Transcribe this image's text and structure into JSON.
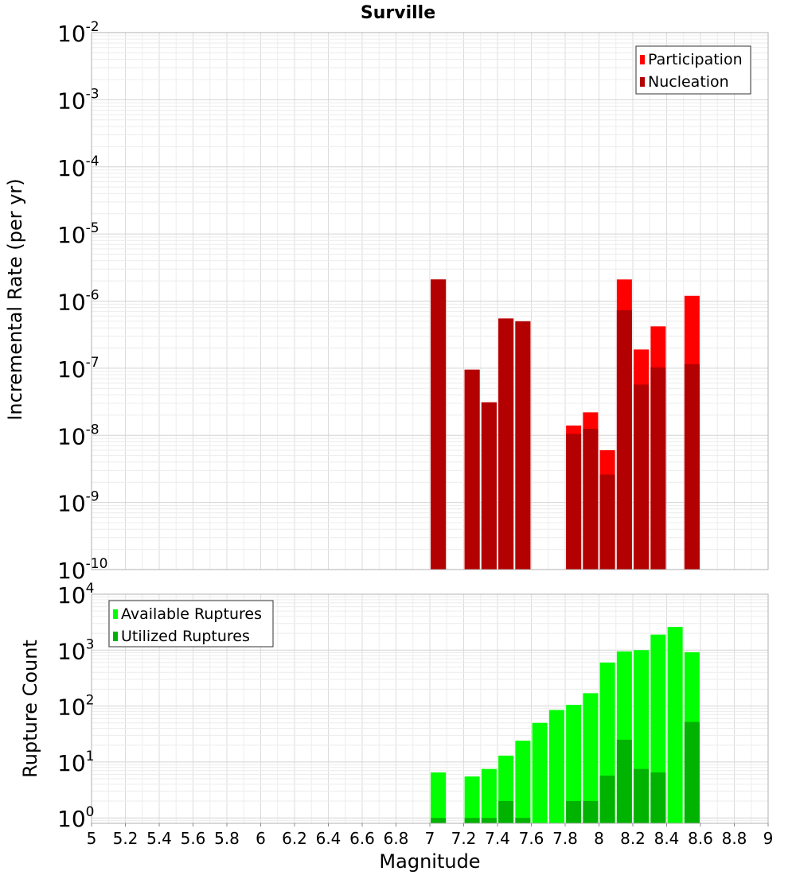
{
  "chart_data": [
    {
      "type": "bar",
      "title": "Surville",
      "xlabel": "",
      "ylabel": "Incremental Rate (per yr)",
      "yscale": "log",
      "ylim": [
        1e-10,
        0.01
      ],
      "xlim": [
        5,
        9
      ],
      "grid": true,
      "legend_position": "top-right",
      "y_tick_base": "10",
      "y_tick_exponents": [
        "-10",
        "-9",
        "-8",
        "-7",
        "-6",
        "-5",
        "-4",
        "-3",
        "-2"
      ],
      "x": [
        7.05,
        7.25,
        7.35,
        7.45,
        7.55,
        7.85,
        7.95,
        8.05,
        8.15,
        8.25,
        8.35,
        8.55
      ],
      "series": [
        {
          "name": "Participation",
          "color": "#ff0000",
          "values": [
            2.1e-06,
            9.5e-08,
            3.1e-08,
            5.5e-07,
            5e-07,
            1.4e-08,
            2.2e-08,
            6e-09,
            2.1e-06,
            1.9e-07,
            4.2e-07,
            1.2e-06
          ]
        },
        {
          "name": "Nucleation",
          "color": "#b30000",
          "values": [
            2.1e-06,
            9.5e-08,
            3.1e-08,
            5.5e-07,
            5e-07,
            1.05e-08,
            1.25e-08,
            2.6e-09,
            7.3e-07,
            5.7e-08,
            1.03e-07,
            1.15e-07
          ]
        }
      ]
    },
    {
      "type": "bar",
      "title": "",
      "xlabel": "Magnitude",
      "ylabel": "Rupture Count",
      "yscale": "log",
      "ylim": [
        0.8,
        10000
      ],
      "xlim": [
        5,
        9
      ],
      "grid": true,
      "legend_position": "top-left",
      "x_tick_labels": [
        "5",
        "5.2",
        "5.4",
        "5.6",
        "5.8",
        "6",
        "6.2",
        "6.4",
        "6.6",
        "6.8",
        "7",
        "7.2",
        "7.4",
        "7.6",
        "7.8",
        "8",
        "8.2",
        "8.4",
        "8.6",
        "8.8",
        "9"
      ],
      "y_tick_base": "10",
      "y_tick_exponents": [
        "0",
        "1",
        "2",
        "3",
        "4"
      ],
      "x": [
        7.05,
        7.25,
        7.35,
        7.45,
        7.55,
        7.65,
        7.75,
        7.85,
        7.95,
        8.05,
        8.15,
        8.25,
        8.35,
        8.45,
        8.55
      ],
      "series": [
        {
          "name": "Available Ruptures",
          "color": "#00ff00",
          "values": [
            6.5,
            5.5,
            7.5,
            13,
            24,
            50,
            85,
            105,
            170,
            600,
            950,
            1000,
            1900,
            2600,
            920
          ]
        },
        {
          "name": "Utilized Ruptures",
          "color": "#00b300",
          "values": [
            1,
            1,
            1,
            2,
            1,
            0,
            0,
            2,
            2,
            5.7,
            25,
            7.5,
            6.5,
            0,
            52
          ]
        }
      ]
    }
  ]
}
